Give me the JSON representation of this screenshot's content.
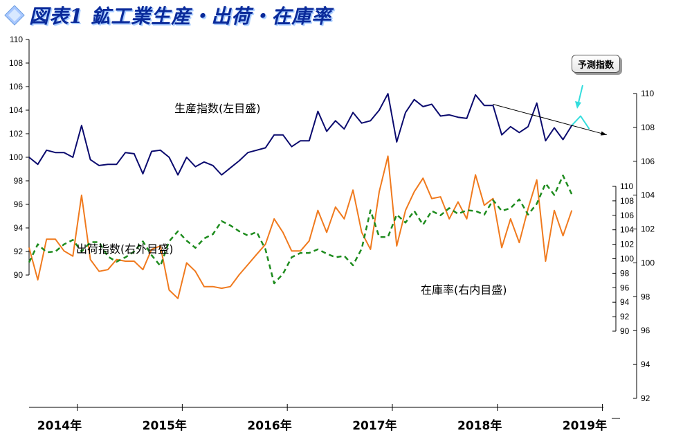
{
  "title": "図表1 鉱工業生産・出荷・在庫率",
  "colors": {
    "production": "#0a0a6e",
    "shipments": "#f07a1e",
    "inventory": "#1e8c1e",
    "forecast": "#33dddd",
    "arrow": "#000000",
    "title": "#0a2a9a"
  },
  "title_icon": "diamond-icon",
  "chart_data": {
    "type": "line",
    "x_start_year": 2014,
    "x_labels": [
      "2014年",
      "2015年",
      "2016年",
      "2017年",
      "2018年",
      "2019年"
    ],
    "axes": {
      "left": {
        "range": [
          90,
          110
        ],
        "ticks": [
          90,
          92,
          94,
          96,
          98,
          100,
          102,
          104,
          106,
          108,
          110
        ]
      },
      "right_outer": {
        "range": [
          92,
          110
        ],
        "ticks": [
          92,
          94,
          96,
          98,
          100,
          102,
          104,
          106,
          108,
          110
        ]
      },
      "right_inner": {
        "range": [
          90,
          110
        ],
        "ticks": [
          90,
          92,
          94,
          96,
          98,
          100,
          102,
          104,
          106,
          108,
          110
        ]
      }
    },
    "series": [
      {
        "key": "production",
        "name": "生産指数(左目盛)",
        "axis": "left",
        "style": "solid",
        "values": [
          100.0,
          99.4,
          100.6,
          100.4,
          100.4,
          100.0,
          102.7,
          99.8,
          99.3,
          99.4,
          99.4,
          100.4,
          100.3,
          98.6,
          100.5,
          100.6,
          100.0,
          98.5,
          100.0,
          99.2,
          99.6,
          99.3,
          98.5,
          99.1,
          99.7,
          100.4,
          100.6,
          100.8,
          101.9,
          101.9,
          100.9,
          101.4,
          101.4,
          103.9,
          102.2,
          103.1,
          102.4,
          103.8,
          102.9,
          103.1,
          104.0,
          105.4,
          101.3,
          103.8,
          104.9,
          104.3,
          104.5,
          103.5,
          103.6,
          103.4,
          103.3,
          105.3,
          104.4,
          104.4,
          101.9,
          102.6,
          102.1,
          102.6,
          104.6,
          101.4,
          102.5,
          101.5,
          102.7
        ]
      },
      {
        "key": "forecast",
        "name": "予測指数",
        "axis": "left",
        "style": "solid",
        "start_index": 62,
        "values": [
          102.7,
          103.5,
          102.4
        ]
      },
      {
        "key": "shipments",
        "name": "出荷指数(右外目盛)",
        "axis": "right_outer",
        "style": "solid",
        "values": [
          100.9,
          99.0,
          101.4,
          101.4,
          100.7,
          100.4,
          104.0,
          100.2,
          99.5,
          99.6,
          100.2,
          100.1,
          100.1,
          99.6,
          100.8,
          101.0,
          98.4,
          97.9,
          100.0,
          99.5,
          98.6,
          98.6,
          98.5,
          98.6,
          99.3,
          99.9,
          100.5,
          101.1,
          102.6,
          101.8,
          100.7,
          100.7,
          101.3,
          103.1,
          101.8,
          103.3,
          102.6,
          104.3,
          101.8,
          100.8,
          104.2,
          106.3,
          101.0,
          103.1,
          104.2,
          105.0,
          103.8,
          103.9,
          102.6,
          103.6,
          102.6,
          105.2,
          103.4,
          103.8,
          100.9,
          102.6,
          101.2,
          103.2,
          104.9,
          100.1,
          103.1,
          101.6,
          103.1
        ]
      },
      {
        "key": "inventory",
        "name": "在庫率(右内目盛)",
        "axis": "right_inner",
        "style": "dashed",
        "values": [
          99.5,
          102.0,
          100.9,
          101.0,
          102.0,
          102.6,
          101.0,
          102.3,
          102.3,
          100.3,
          99.6,
          100.2,
          101.0,
          102.4,
          100.5,
          99.0,
          102.4,
          103.8,
          102.5,
          101.5,
          102.8,
          103.4,
          105.2,
          104.6,
          103.8,
          103.2,
          103.7,
          101.3,
          96.6,
          97.9,
          100.2,
          100.8,
          100.8,
          101.3,
          100.7,
          100.2,
          100.4,
          99.1,
          101.4,
          106.7,
          103.0,
          103.0,
          106.1,
          105.0,
          106.6,
          104.7,
          106.6,
          106.0,
          107.0,
          106.2,
          106.7,
          106.6,
          106.1,
          108.1,
          106.6,
          107.0,
          108.2,
          106.1,
          107.6,
          110.4,
          108.8,
          111.5,
          108.9
        ]
      }
    ],
    "annotations": [
      {
        "key": "production",
        "text": "生産指数(左目盛)"
      },
      {
        "key": "shipments",
        "text": "出荷指数(右外目盛)"
      },
      {
        "key": "inventory",
        "text": "在庫率(右内目盛)"
      },
      {
        "key": "forecast",
        "text": "予測指数"
      }
    ],
    "trend_arrow": {
      "from": {
        "index": 53,
        "value": 104.5
      },
      "to": {
        "index": 66,
        "value": 101.9
      },
      "axis": "left"
    },
    "grid": false,
    "legend": "none"
  }
}
